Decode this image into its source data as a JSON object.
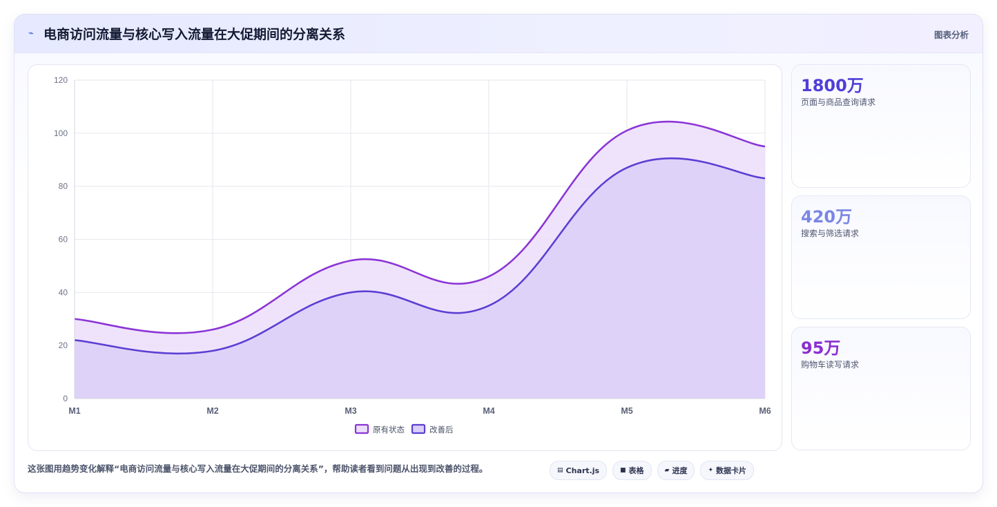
{
  "header": {
    "title_icon": "trend-icon",
    "title": "电商访问流量与核心写入流量在大促期间的分离关系",
    "tag": "图表分析"
  },
  "chart_data": {
    "type": "area",
    "categories": [
      "M1",
      "M2",
      "M3",
      "M4",
      "M5",
      "M6"
    ],
    "ylim": [
      0,
      120
    ],
    "yticks": [
      0,
      20,
      40,
      60,
      80,
      100,
      120
    ],
    "grid": true,
    "legend_position": "bottom",
    "series": [
      {
        "name": "原有状态",
        "values": [
          30,
          26,
          52,
          46,
          101,
          95
        ],
        "color": "#8b35d6",
        "fill": "#ecdefa"
      },
      {
        "name": "改善后",
        "values": [
          22,
          18,
          40,
          35,
          87,
          83
        ],
        "color": "#5b3fd3",
        "fill": "#dccff8"
      }
    ]
  },
  "stats": [
    {
      "value": "1800万",
      "label": "页面与商品查询请求",
      "color": "#4f3fd6"
    },
    {
      "value": "420万",
      "label": "搜索与筛选请求",
      "color": "#7b85e6"
    },
    {
      "value": "95万",
      "label": "购物车读写请求",
      "color": "#8a2fd0"
    }
  ],
  "caption": "这张图用趋势变化解释“电商访问流量与核心写入流量在大促期间的分离关系”，帮助读者看到问题从出现到改善的过程。",
  "chips": [
    {
      "icon": "chart-icon",
      "glyph": "▤",
      "label": "Chart.js"
    },
    {
      "icon": "table-icon",
      "glyph": "■",
      "label": "表格"
    },
    {
      "icon": "progress-icon",
      "glyph": "▰",
      "label": "进度"
    },
    {
      "icon": "card-icon",
      "glyph": "✦",
      "label": "数据卡片"
    }
  ]
}
